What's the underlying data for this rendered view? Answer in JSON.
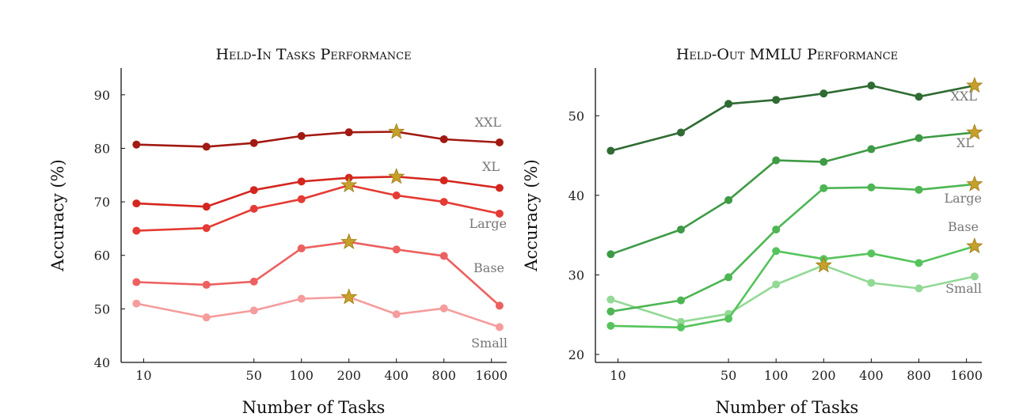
{
  "chart_data": [
    {
      "type": "line",
      "title": "Held-In Tasks Performance",
      "xlabel": "Number of Tasks",
      "ylabel": "Accuracy (%)",
      "x_scale": "log",
      "x": [
        9,
        25,
        50,
        100,
        200,
        400,
        800,
        1800
      ],
      "x_ticks": [
        10,
        50,
        100,
        200,
        400,
        800,
        1600
      ],
      "ylim": [
        40,
        95
      ],
      "y_ticks": [
        40,
        50,
        60,
        70,
        80,
        90
      ],
      "series": [
        {
          "name": "XXL",
          "color": "#a11a12",
          "values": [
            80.7,
            80.3,
            81.0,
            82.3,
            83.0,
            83.1,
            81.7,
            81.1
          ],
          "star_index": 5
        },
        {
          "name": "XL",
          "color": "#d4261e",
          "values": [
            69.7,
            69.1,
            72.2,
            73.8,
            74.5,
            74.7,
            74.0,
            72.6
          ],
          "star_index": 5
        },
        {
          "name": "Large",
          "color": "#e43b34",
          "values": [
            64.6,
            65.1,
            68.7,
            70.5,
            73.1,
            71.2,
            70.0,
            67.8
          ],
          "star_index": 4
        },
        {
          "name": "Base",
          "color": "#ec6160",
          "values": [
            55.0,
            54.5,
            55.1,
            61.3,
            62.5,
            61.1,
            59.9,
            50.6
          ],
          "star_index": 4
        },
        {
          "name": "Small",
          "color": "#f59c9c",
          "values": [
            51.0,
            48.4,
            49.7,
            51.9,
            52.2,
            49.0,
            50.1,
            46.6
          ],
          "star_index": 4
        }
      ]
    },
    {
      "type": "line",
      "title": "Held-Out MMLU Performance",
      "xlabel": "Number of Tasks",
      "ylabel": "Accuracy (%)",
      "x_scale": "log",
      "x": [
        9,
        25,
        50,
        100,
        200,
        400,
        800,
        1800
      ],
      "x_ticks": [
        10,
        50,
        100,
        200,
        400,
        800,
        1600
      ],
      "ylim": [
        19,
        56
      ],
      "y_ticks": [
        20,
        30,
        40,
        50
      ],
      "series": [
        {
          "name": "XXL",
          "color": "#2f6b33",
          "values": [
            45.6,
            47.9,
            51.5,
            52.0,
            52.8,
            53.8,
            52.4,
            53.8
          ],
          "star_index": 7
        },
        {
          "name": "XL",
          "color": "#3e9a45",
          "values": [
            32.6,
            35.7,
            39.4,
            44.4,
            44.2,
            45.8,
            47.2,
            47.9
          ],
          "star_index": 7
        },
        {
          "name": "Large",
          "color": "#4db653",
          "values": [
            25.4,
            26.8,
            29.7,
            35.7,
            40.9,
            41.0,
            40.7,
            41.4
          ],
          "star_index": 7
        },
        {
          "name": "Base",
          "color": "#56c45c",
          "values": [
            23.6,
            23.4,
            24.5,
            33.0,
            32.0,
            32.7,
            31.5,
            33.6
          ],
          "star_index": 7
        },
        {
          "name": "Small",
          "color": "#92d995",
          "values": [
            26.9,
            24.1,
            25.1,
            28.8,
            31.2,
            29.0,
            28.3,
            29.8
          ],
          "star_index": 4
        }
      ]
    }
  ]
}
